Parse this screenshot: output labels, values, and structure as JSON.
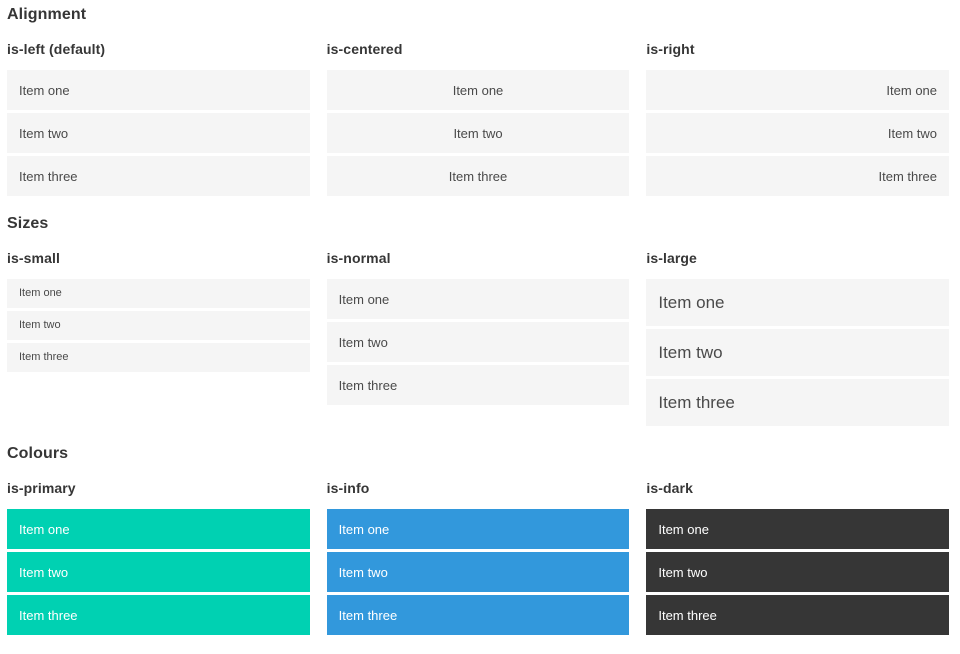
{
  "colors": {
    "page_background": "#ffffff",
    "item_background_light": "#f5f5f5",
    "item_text": "#4a4a4a",
    "heading_text": "#363636",
    "primary": "#00d1b2",
    "info": "#3298dc",
    "dark": "#363636",
    "item_text_on_color": "#ffffff"
  },
  "sections": [
    {
      "title": "Alignment",
      "columns": [
        {
          "subtitle": "is-left (default)",
          "variant": "align-left",
          "items": [
            "Item one",
            "Item two",
            "Item three"
          ]
        },
        {
          "subtitle": "is-centered",
          "variant": "align-center",
          "items": [
            "Item one",
            "Item two",
            "Item three"
          ]
        },
        {
          "subtitle": "is-right",
          "variant": "align-right",
          "items": [
            "Item one",
            "Item two",
            "Item three"
          ]
        }
      ]
    },
    {
      "title": "Sizes",
      "columns": [
        {
          "subtitle": "is-small",
          "variant": "size-small",
          "items": [
            "Item one",
            "Item two",
            "Item three"
          ]
        },
        {
          "subtitle": "is-normal",
          "variant": "size-normal",
          "items": [
            "Item one",
            "Item two",
            "Item three"
          ]
        },
        {
          "subtitle": "is-large",
          "variant": "size-large",
          "items": [
            "Item one",
            "Item two",
            "Item three"
          ]
        }
      ]
    },
    {
      "title": "Colours",
      "columns": [
        {
          "subtitle": "is-primary",
          "variant": "color-primary",
          "items": [
            "Item one",
            "Item two",
            "Item three"
          ]
        },
        {
          "subtitle": "is-info",
          "variant": "color-info",
          "items": [
            "Item one",
            "Item two",
            "Item three"
          ]
        },
        {
          "subtitle": "is-dark",
          "variant": "color-dark",
          "items": [
            "Item one",
            "Item two",
            "Item three"
          ]
        }
      ]
    }
  ]
}
